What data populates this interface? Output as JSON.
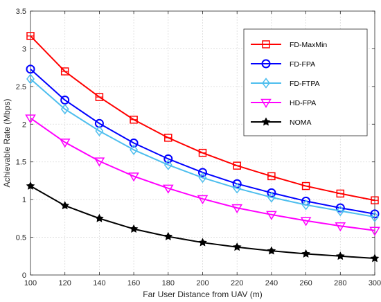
{
  "chart_data": {
    "type": "line",
    "xlabel": "Far User Distance from UAV (m)",
    "ylabel": "Achievable Rate (Mbps)",
    "xlim": [
      100,
      300
    ],
    "ylim": [
      0,
      3.5
    ],
    "x_ticks": [
      100,
      120,
      140,
      160,
      180,
      200,
      220,
      240,
      260,
      280,
      300
    ],
    "y_ticks": [
      0,
      0.5,
      1,
      1.5,
      2,
      2.5,
      3,
      3.5
    ],
    "x_tick_labels": [
      "100",
      "120",
      "140",
      "160",
      "180",
      "200",
      "220",
      "240",
      "260",
      "280",
      "300"
    ],
    "y_tick_labels": [
      "0",
      "0.5",
      "1",
      "1.5",
      "2",
      "2.5",
      "3",
      "3.5"
    ],
    "grid": true,
    "legend_position": "top-right",
    "x": [
      100,
      120,
      140,
      160,
      180,
      200,
      220,
      240,
      260,
      280,
      300
    ],
    "series": [
      {
        "name": "FD-MaxMin",
        "color": "#ff0000",
        "marker": "square",
        "values": [
          3.17,
          2.7,
          2.36,
          2.06,
          1.82,
          1.62,
          1.45,
          1.31,
          1.18,
          1.08,
          0.99
        ]
      },
      {
        "name": "FD-FPA",
        "color": "#0000ff",
        "marker": "circle",
        "values": [
          2.73,
          2.32,
          2.01,
          1.75,
          1.54,
          1.36,
          1.21,
          1.09,
          0.98,
          0.89,
          0.81
        ]
      },
      {
        "name": "FD-FTPA",
        "color": "#4dbeee",
        "marker": "diamond",
        "values": [
          2.6,
          2.2,
          1.91,
          1.66,
          1.46,
          1.29,
          1.15,
          1.03,
          0.93,
          0.85,
          0.77
        ]
      },
      {
        "name": "HD-FPA",
        "color": "#ff00ff",
        "marker": "triangle-down",
        "values": [
          2.08,
          1.76,
          1.51,
          1.31,
          1.15,
          1.01,
          0.89,
          0.8,
          0.72,
          0.65,
          0.59
        ]
      },
      {
        "name": "NOMA",
        "color": "#000000",
        "marker": "star",
        "values": [
          1.18,
          0.92,
          0.75,
          0.61,
          0.51,
          0.43,
          0.37,
          0.32,
          0.28,
          0.25,
          0.22
        ]
      }
    ]
  }
}
